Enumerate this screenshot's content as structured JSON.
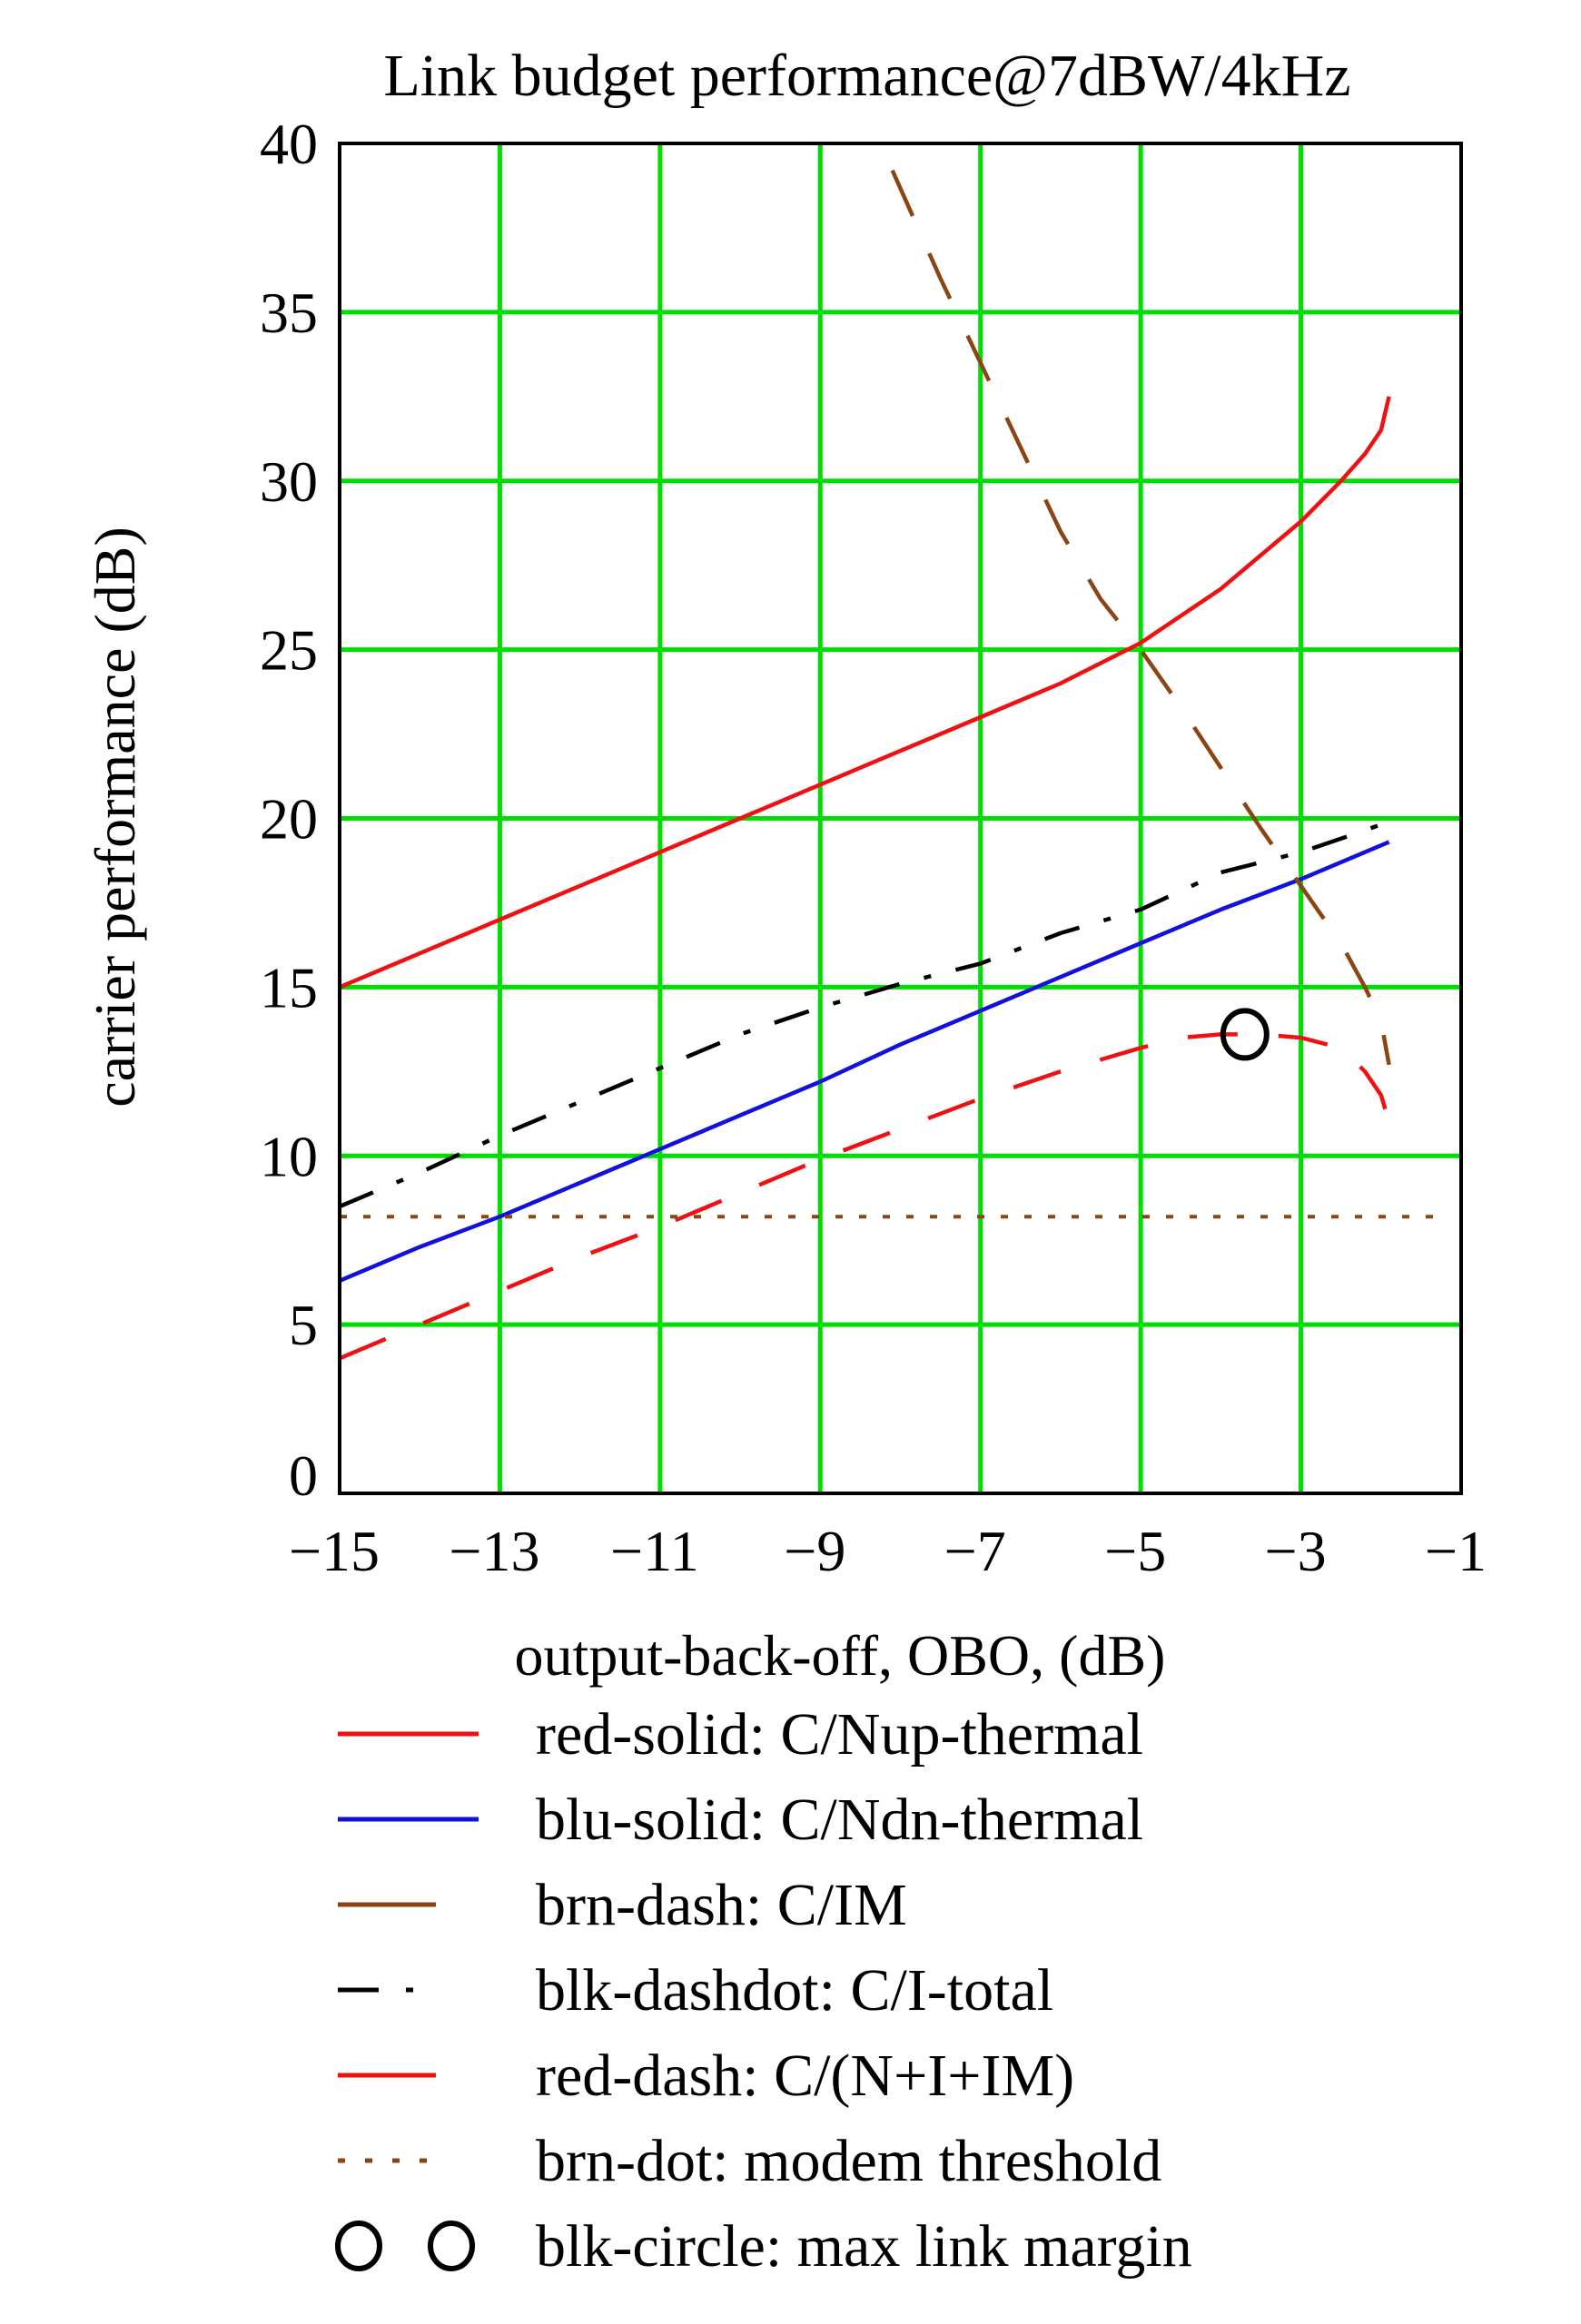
{
  "chart_data": {
    "type": "line",
    "title": "Link budget performance@7dBW/4kHz",
    "xlabel": "output-back-off, OBO, (dB)",
    "ylabel": "carrier performance (dB)",
    "xlim": [
      -15,
      -1
    ],
    "ylim": [
      0,
      40
    ],
    "x_ticks": [
      -15,
      -13,
      -11,
      -9,
      -7,
      -5,
      -3,
      -1
    ],
    "x_tick_labels": [
      "−15",
      "−13",
      "−11",
      "−9",
      "−7",
      "−5",
      "−3",
      "−1"
    ],
    "y_ticks": [
      0,
      5,
      10,
      15,
      20,
      25,
      30,
      35,
      40
    ],
    "y_tick_labels": [
      "0",
      "5",
      "10",
      "15",
      "20",
      "25",
      "30",
      "35",
      "40"
    ],
    "grid": true,
    "grid_color": "#00dd00",
    "series": [
      {
        "key": "red_solid",
        "legend": "red-solid: C/Nup-thermal",
        "color": "#ee1111",
        "dash": "solid",
        "x": [
          -15,
          -14,
          -13,
          -12,
          -11,
          -10,
          -9,
          -8,
          -7,
          -6,
          -5,
          -4,
          -3.5,
          -3,
          -2.5,
          -2.2,
          -2.0,
          -1.9
        ],
        "y": [
          15.0,
          16.0,
          17.0,
          18.0,
          19.0,
          20.0,
          21.0,
          22.0,
          23.0,
          24.0,
          25.2,
          26.8,
          27.8,
          28.8,
          30.0,
          30.8,
          31.5,
          32.5
        ]
      },
      {
        "key": "blu_solid",
        "legend": "blu-solid: C/Ndn-thermal",
        "color": "#1111dd",
        "dash": "solid",
        "x": [
          -15,
          -14,
          -13,
          -12,
          -11,
          -10,
          -9,
          -8,
          -7,
          -6,
          -5,
          -4,
          -3,
          -2.5,
          -1.9
        ],
        "y": [
          6.3,
          7.3,
          8.2,
          9.2,
          10.2,
          11.2,
          12.2,
          13.3,
          14.3,
          15.3,
          16.3,
          17.3,
          18.2,
          18.7,
          19.3
        ]
      },
      {
        "key": "brn_dash",
        "legend": "brn-dash: C/IM",
        "color": "#8b4513",
        "dash": "long",
        "x": [
          -8.1,
          -7.5,
          -7.0,
          -6.5,
          -6.0,
          -5.5,
          -5.0,
          -4.5,
          -4.0,
          -3.5,
          -3.0,
          -2.5,
          -2.2,
          -2.0,
          -1.9
        ],
        "y": [
          39.2,
          36.0,
          33.5,
          31.0,
          28.5,
          26.5,
          25.0,
          23.3,
          21.5,
          19.7,
          18.0,
          16.3,
          15.0,
          14.0,
          12.7
        ]
      },
      {
        "key": "blk_dashdot",
        "legend": "blk-dashdot: C/I-total",
        "color": "#000000",
        "dash": "dashdot",
        "x": [
          -15,
          -14,
          -13,
          -12,
          -11,
          -10,
          -9,
          -8,
          -7,
          -6,
          -5,
          -4,
          -3,
          -2.5,
          -1.9
        ],
        "y": [
          8.5,
          9.5,
          10.6,
          11.6,
          12.6,
          13.6,
          14.4,
          15.1,
          15.7,
          16.6,
          17.3,
          18.4,
          19.0,
          19.4,
          19.9
        ]
      },
      {
        "key": "red_dash",
        "legend": "red-dash: C/(N+I+IM)",
        "color": "#ee1111",
        "dash": "long",
        "x": [
          -15,
          -14,
          -13,
          -12,
          -11,
          -10,
          -9,
          -8,
          -7,
          -6,
          -5,
          -4.5,
          -4,
          -3.5,
          -3,
          -2.5,
          -2.2,
          -2.0,
          -1.9
        ],
        "y": [
          4.0,
          5.0,
          6.0,
          7.0,
          7.9,
          8.9,
          9.9,
          10.8,
          11.7,
          12.5,
          13.2,
          13.5,
          13.6,
          13.6,
          13.5,
          13.2,
          12.5,
          11.8,
          11.0
        ]
      },
      {
        "key": "brn_dot",
        "legend": "brn-dot: modem threshold",
        "color": "#8b4513",
        "dash": "dot",
        "x": [
          -15,
          -1.2
        ],
        "y": [
          8.2,
          8.2
        ]
      }
    ],
    "markers": [
      {
        "key": "blk_circle",
        "legend": "blk-circle: max link margin",
        "color": "#000000",
        "x": -3.7,
        "y": 13.6
      }
    ]
  }
}
